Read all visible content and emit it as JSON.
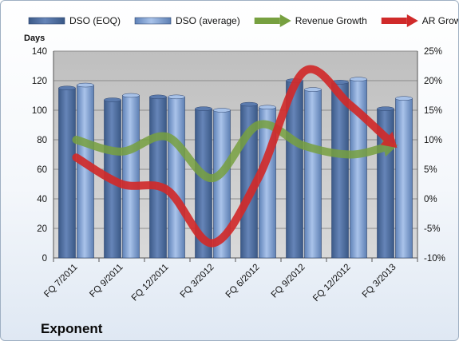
{
  "chart_data": {
    "type": "bar",
    "company": "Exponent",
    "ylabel": "Days",
    "categories": [
      "FQ 7/2011",
      "FQ 9/2011",
      "FQ 12/2011",
      "FQ 3/2012",
      "FQ 6/2012",
      "FQ 9/2012",
      "FQ 12/2012",
      "FQ 3/2013"
    ],
    "ylim": [
      0,
      140
    ],
    "yticks": [
      "0",
      "20",
      "40",
      "60",
      "80",
      "100",
      "120",
      "140"
    ],
    "y2lim": [
      -10,
      25
    ],
    "y2ticks": [
      "-10%",
      "-5%",
      "0%",
      "5%",
      "10%",
      "15%",
      "20%",
      "25%"
    ],
    "series": [
      {
        "name": "DSO (EOQ)",
        "type": "bar",
        "axis": "left",
        "color": "#4f6f9f",
        "values": [
          115,
          107,
          109,
          101,
          104,
          120,
          119,
          101
        ]
      },
      {
        "name": "DSO (average)",
        "type": "bar",
        "axis": "right_of_pair",
        "color": "#7f9fd0",
        "values": [
          117,
          110,
          109,
          100,
          102,
          114,
          121,
          108
        ]
      },
      {
        "name": "Revenue Growth",
        "type": "line",
        "axis": "right",
        "color": "#77a040",
        "values": [
          10,
          8,
          10.5,
          3.5,
          12.5,
          9,
          7.5,
          9
        ]
      },
      {
        "name": "AR Growth",
        "type": "line",
        "axis": "right",
        "color": "#d02a2a",
        "values": [
          7,
          2.5,
          1.5,
          -7.5,
          3.5,
          21.5,
          16,
          9
        ]
      }
    ],
    "grid": true,
    "legend": "top"
  }
}
